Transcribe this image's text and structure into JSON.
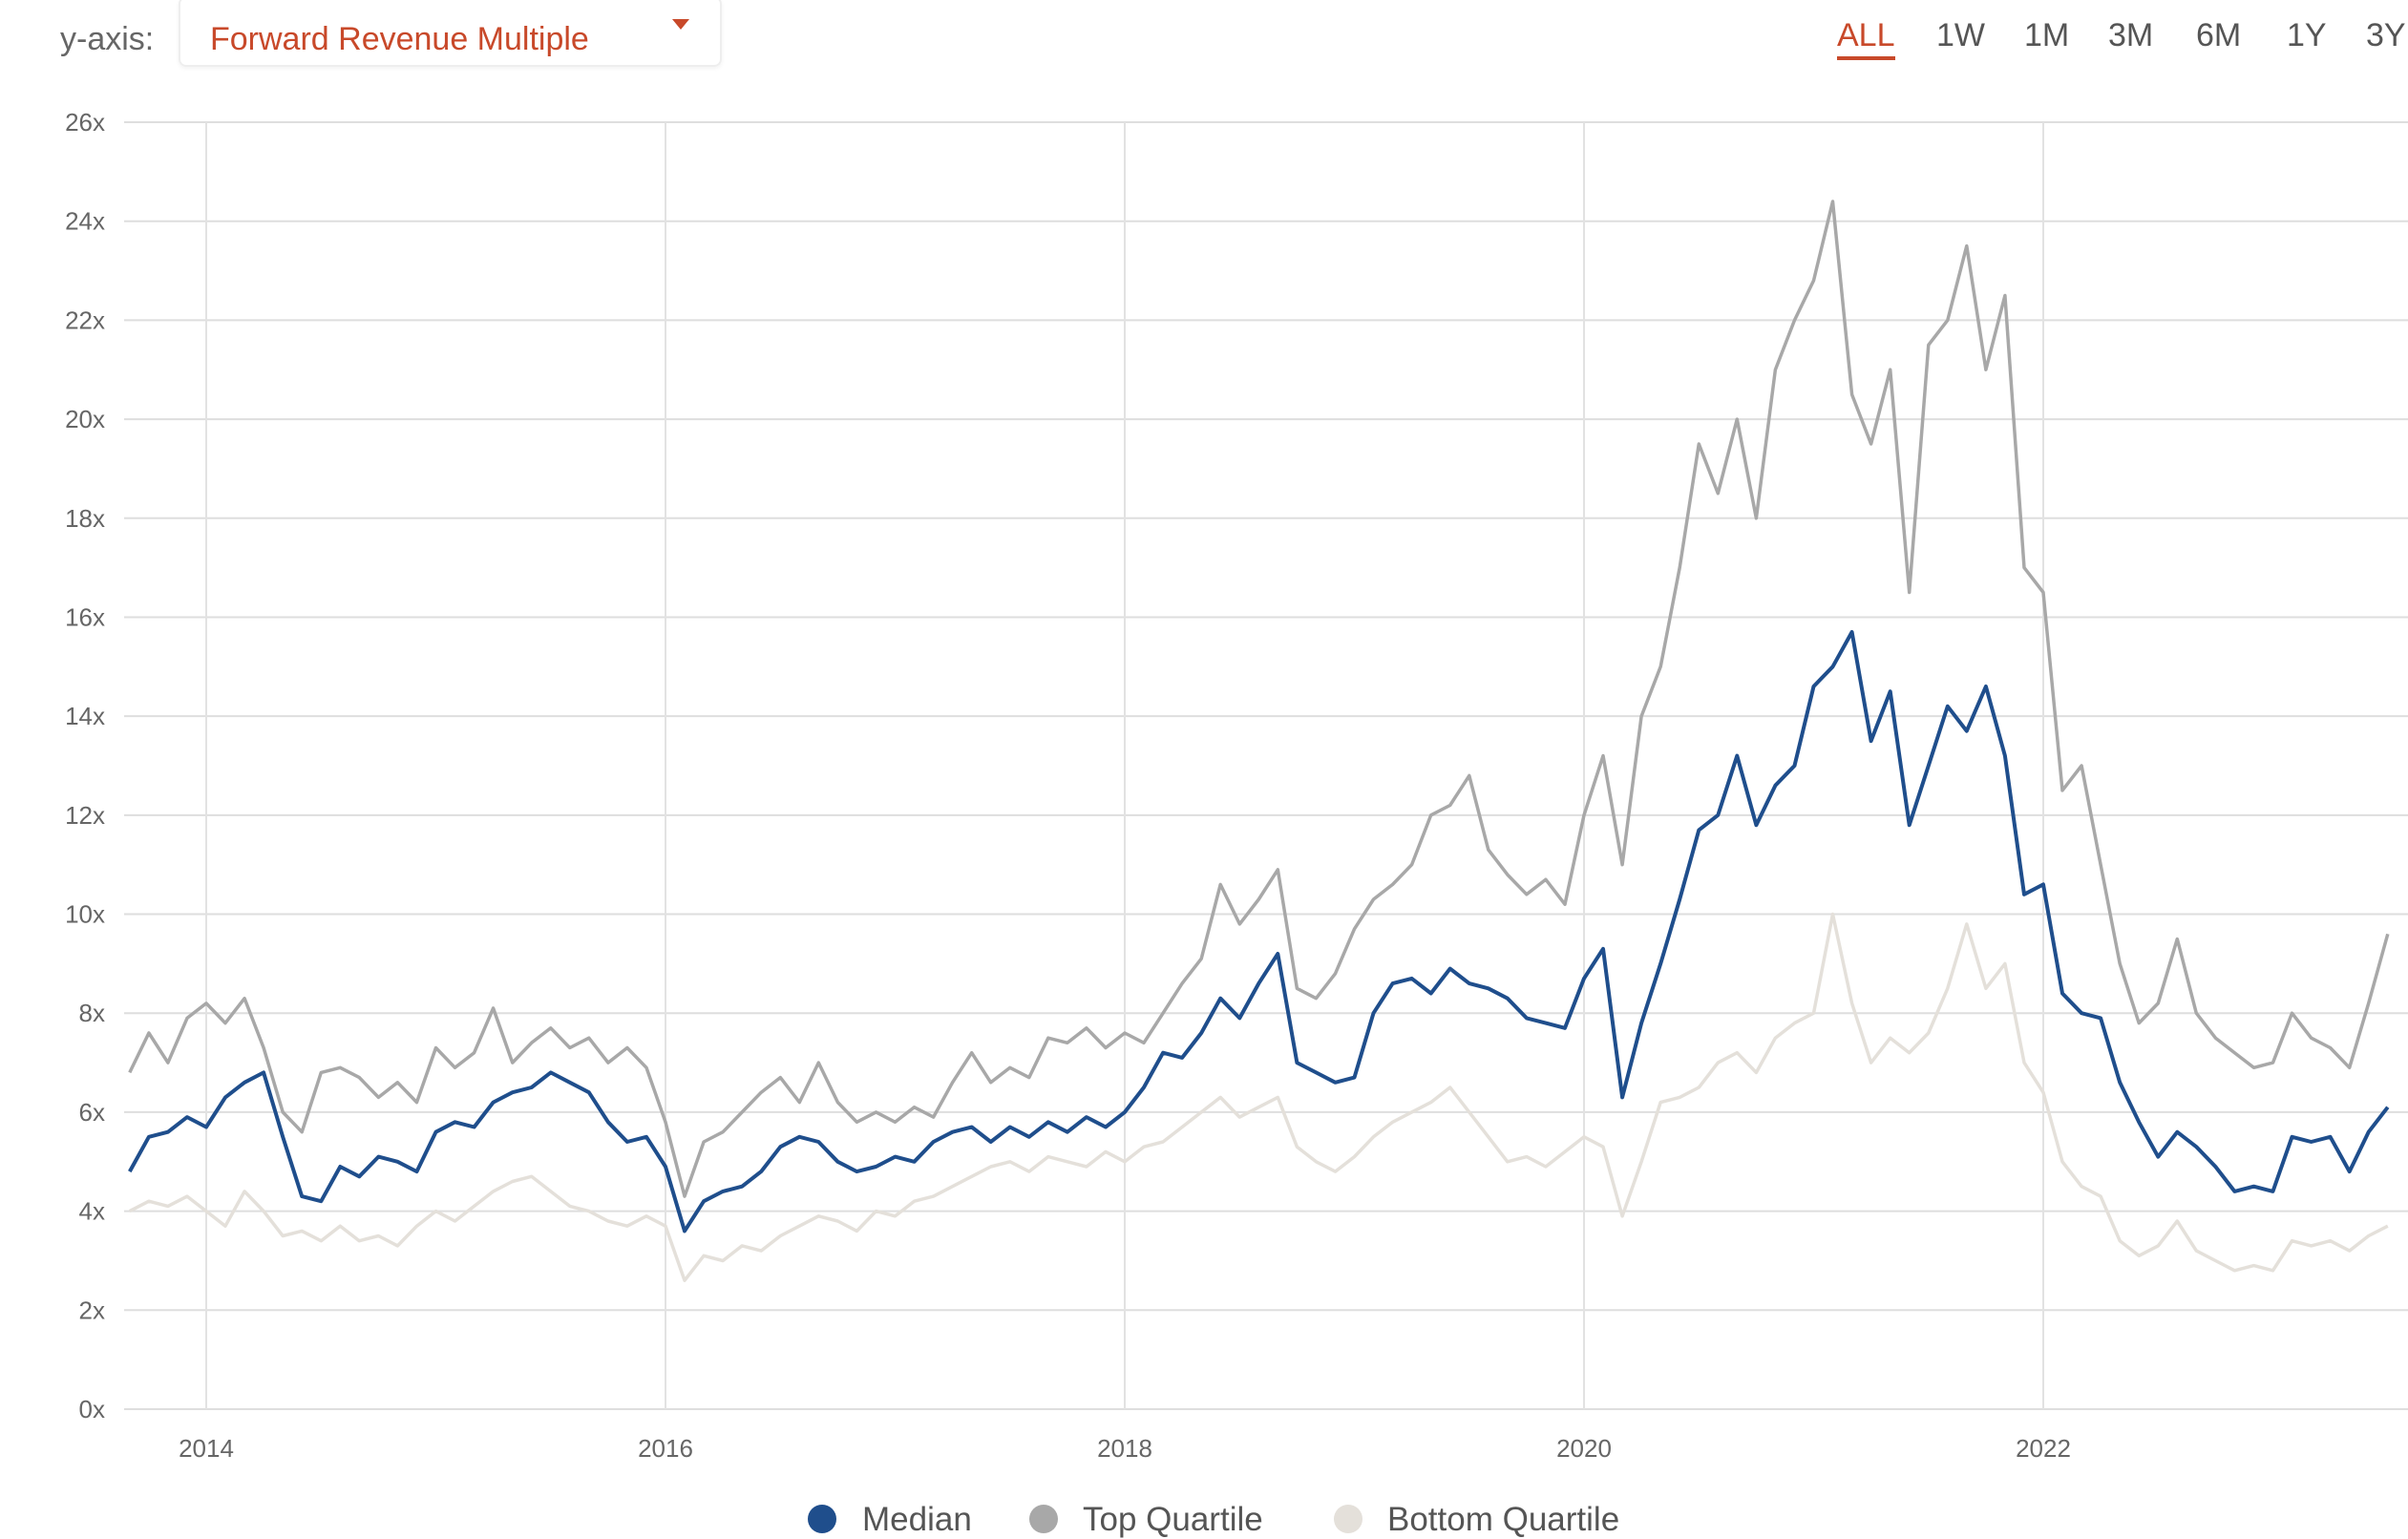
{
  "controls": {
    "yaxis_label": "y-axis:",
    "yaxis_selected": "Forward Revenue Multiple",
    "ranges": [
      "ALL",
      "1W",
      "1M",
      "3M",
      "6M",
      "1Y",
      "3Y"
    ],
    "active_range": "ALL",
    "accent_color": "#c8492a"
  },
  "chart_data": {
    "type": "line",
    "title": "",
    "xlabel": "",
    "ylabel": "",
    "ylim": [
      0,
      26
    ],
    "yticks": [
      "0x",
      "2x",
      "4x",
      "6x",
      "8x",
      "10x",
      "12x",
      "14x",
      "16x",
      "18x",
      "20x",
      "22x",
      "24x",
      "26x"
    ],
    "xticks": [
      "2014",
      "2016",
      "2018",
      "2020",
      "2022"
    ],
    "grid": true,
    "legend_position": "bottom",
    "x_start": "2013-09",
    "x_frequency": "monthly",
    "series": [
      {
        "name": "Median",
        "color": "#1f4e8c",
        "values": [
          4.8,
          5.5,
          5.6,
          5.9,
          5.7,
          6.3,
          6.6,
          6.8,
          5.5,
          4.3,
          4.2,
          4.9,
          4.7,
          5.1,
          5.0,
          4.8,
          5.6,
          5.8,
          5.7,
          6.2,
          6.4,
          6.5,
          6.8,
          6.6,
          6.4,
          5.8,
          5.4,
          5.5,
          4.9,
          3.6,
          4.2,
          4.4,
          4.5,
          4.8,
          5.3,
          5.5,
          5.4,
          5.0,
          4.8,
          4.9,
          5.1,
          5.0,
          5.4,
          5.6,
          5.7,
          5.4,
          5.7,
          5.5,
          5.8,
          5.6,
          5.9,
          5.7,
          6.0,
          6.5,
          7.2,
          7.1,
          7.6,
          8.3,
          7.9,
          8.6,
          9.2,
          7.0,
          6.8,
          6.6,
          6.7,
          8.0,
          8.6,
          8.7,
          8.4,
          8.9,
          8.6,
          8.5,
          8.3,
          7.9,
          7.8,
          7.7,
          8.7,
          9.3,
          6.3,
          7.8,
          9.0,
          10.3,
          11.7,
          12.0,
          13.2,
          11.8,
          12.6,
          13.0,
          14.6,
          15.0,
          15.7,
          13.5,
          14.5,
          11.8,
          13.0,
          14.2,
          13.7,
          14.6,
          13.2,
          10.4,
          10.6,
          8.4,
          8.0,
          7.9,
          6.6,
          5.8,
          5.1,
          5.6,
          5.3,
          4.9,
          4.4,
          4.5,
          4.4,
          5.5,
          5.4,
          5.5,
          4.8,
          5.6,
          6.1
        ]
      },
      {
        "name": "Top Quartile",
        "color": "#a8a8a8",
        "values": [
          6.8,
          7.6,
          7.0,
          7.9,
          8.2,
          7.8,
          8.3,
          7.3,
          6.0,
          5.6,
          6.8,
          6.9,
          6.7,
          6.3,
          6.6,
          6.2,
          7.3,
          6.9,
          7.2,
          8.1,
          7.0,
          7.4,
          7.7,
          7.3,
          7.5,
          7.0,
          7.3,
          6.9,
          5.8,
          4.3,
          5.4,
          5.6,
          6.0,
          6.4,
          6.7,
          6.2,
          7.0,
          6.2,
          5.8,
          6.0,
          5.8,
          6.1,
          5.9,
          6.6,
          7.2,
          6.6,
          6.9,
          6.7,
          7.5,
          7.4,
          7.7,
          7.3,
          7.6,
          7.4,
          8.0,
          8.6,
          9.1,
          10.6,
          9.8,
          10.3,
          10.9,
          8.5,
          8.3,
          8.8,
          9.7,
          10.3,
          10.6,
          11.0,
          12.0,
          12.2,
          12.8,
          11.3,
          10.8,
          10.4,
          10.7,
          10.2,
          12.0,
          13.2,
          11.0,
          14.0,
          15.0,
          17.0,
          19.5,
          18.5,
          20.0,
          18.0,
          21.0,
          22.0,
          22.8,
          24.4,
          20.5,
          19.5,
          21.0,
          16.5,
          21.5,
          22.0,
          23.5,
          21.0,
          22.5,
          17.0,
          16.5,
          12.5,
          13.0,
          11.0,
          9.0,
          7.8,
          8.2,
          9.5,
          8.0,
          7.5,
          7.2,
          6.9,
          7.0,
          8.0,
          7.5,
          7.3,
          6.9,
          8.2,
          9.6
        ]
      },
      {
        "name": "Bottom Quartile",
        "color": "#e4e0da",
        "values": [
          4.0,
          4.2,
          4.1,
          4.3,
          4.0,
          3.7,
          4.4,
          4.0,
          3.5,
          3.6,
          3.4,
          3.7,
          3.4,
          3.5,
          3.3,
          3.7,
          4.0,
          3.8,
          4.1,
          4.4,
          4.6,
          4.7,
          4.4,
          4.1,
          4.0,
          3.8,
          3.7,
          3.9,
          3.7,
          2.6,
          3.1,
          3.0,
          3.3,
          3.2,
          3.5,
          3.7,
          3.9,
          3.8,
          3.6,
          4.0,
          3.9,
          4.2,
          4.3,
          4.5,
          4.7,
          4.9,
          5.0,
          4.8,
          5.1,
          5.0,
          4.9,
          5.2,
          5.0,
          5.3,
          5.4,
          5.7,
          6.0,
          6.3,
          5.9,
          6.1,
          6.3,
          5.3,
          5.0,
          4.8,
          5.1,
          5.5,
          5.8,
          6.0,
          6.2,
          6.5,
          6.0,
          5.5,
          5.0,
          5.1,
          4.9,
          5.2,
          5.5,
          5.3,
          3.9,
          5.0,
          6.2,
          6.3,
          6.5,
          7.0,
          7.2,
          6.8,
          7.5,
          7.8,
          8.0,
          10.0,
          8.2,
          7.0,
          7.5,
          7.2,
          7.6,
          8.5,
          9.8,
          8.5,
          9.0,
          7.0,
          6.4,
          5.0,
          4.5,
          4.3,
          3.4,
          3.1,
          3.3,
          3.8,
          3.2,
          3.0,
          2.8,
          2.9,
          2.8,
          3.4,
          3.3,
          3.4,
          3.2,
          3.5,
          3.7
        ]
      }
    ]
  }
}
